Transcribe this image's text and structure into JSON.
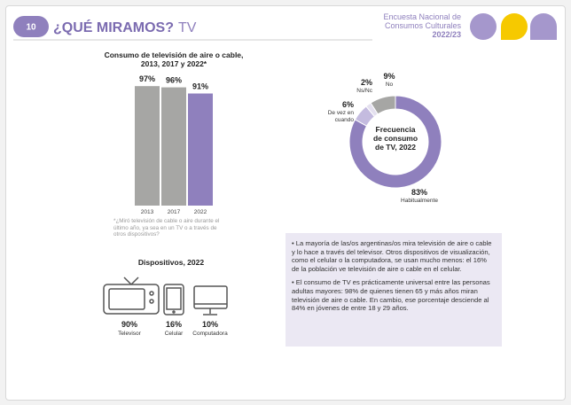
{
  "header": {
    "page_number": "10",
    "title": "¿QUÉ MIRAMOS?",
    "subtitle": "TV",
    "survey": [
      "Encuesta Nacional de",
      "Consumos Culturales",
      "2022/23"
    ]
  },
  "chart_data": [
    {
      "type": "bar",
      "title": [
        "Consumo de televisión de aire o cable,",
        "2013, 2017 y 2022*"
      ],
      "categories": [
        "2013",
        "2017",
        "2022"
      ],
      "values": [
        97,
        96,
        91
      ],
      "value_labels": [
        "97%",
        "96%",
        "91%"
      ],
      "colors": [
        "#a6a6a4",
        "#a6a6a4",
        "#8f80bd"
      ],
      "ylim": [
        0,
        100
      ],
      "footnote": "*¿Miró televisión de cable o aire durante el último año, ya sea en un TV o a través de otros dispositivos?"
    },
    {
      "type": "donut",
      "center_label": [
        "Frecuencia",
        "de consumo",
        "de TV, 2022"
      ],
      "categories": [
        "Habitualmente",
        "De vez en cuando",
        "Ns/Nc",
        "No"
      ],
      "values": [
        83,
        6,
        2,
        9
      ],
      "value_labels": [
        "83%",
        "6%",
        "2%",
        "9%"
      ],
      "colors": [
        "#8f80bd",
        "#c4bbdf",
        "#e4e0ef",
        "#a6a6a4"
      ]
    }
  ],
  "devices": {
    "title": "Dispositivos, 2022",
    "items": [
      {
        "percent": "90%",
        "name": "Televisor"
      },
      {
        "percent": "16%",
        "name": "Celular"
      },
      {
        "percent": "10%",
        "name": "Computadora"
      }
    ]
  },
  "notes": [
    "• La mayoría de las/os argentinas/os mira televisión de aire o cable y lo hace a través del televisor. Otros dispositivos de visualización, como el celular o la computadora, se usan mucho menos: el 16% de la población ve televisión de aire o cable en el celular.",
    "• El consumo de TV es prácticamente universal entre las personas adultas mayores: 98% de quienes tienen 65 y más años miran televisión de aire o cable. En cambio, ese porcentaje desciende al 84% en jóvenes de entre 18 y 29 años."
  ]
}
